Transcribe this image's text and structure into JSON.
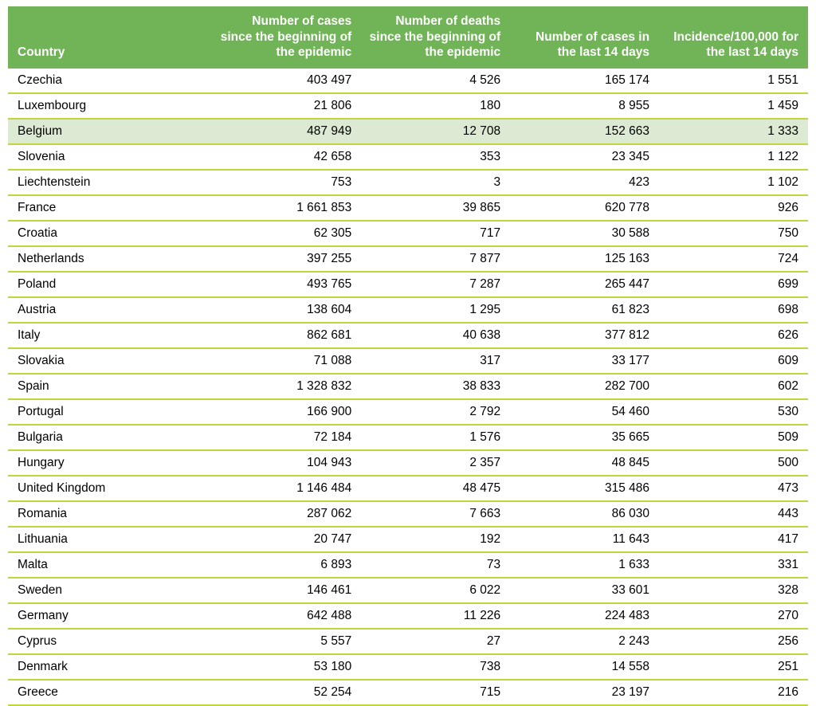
{
  "colors": {
    "header_background": "#71b357",
    "header_text": "#ffffff",
    "row_divider": "#c3d53c",
    "highlight_row_background": "#dcead3",
    "body_text": "#000000",
    "page_background": "#ffffff"
  },
  "chart_data": {
    "type": "table",
    "title": "",
    "legend": null,
    "highlight_country": "Belgium",
    "columns": [
      "Country",
      "Number of cases since the beginning of the epidemic",
      "Number of deaths since the beginning of the epidemic",
      "Number of cases in the last 14 days",
      "Incidence/100,000 for the last 14 days"
    ],
    "row_field_order": [
      "country",
      "cases_total",
      "deaths_total",
      "cases_last_14_days",
      "incidence_per_100000_last_14_days"
    ],
    "rows": [
      {
        "country": "Czechia",
        "cases_total": "403 497",
        "deaths_total": "4 526",
        "cases_last_14_days": "165 174",
        "incidence_per_100000_last_14_days": "1 551"
      },
      {
        "country": "Luxembourg",
        "cases_total": "21 806",
        "deaths_total": "180",
        "cases_last_14_days": "8 955",
        "incidence_per_100000_last_14_days": "1 459"
      },
      {
        "country": "Belgium",
        "cases_total": "487 949",
        "deaths_total": "12 708",
        "cases_last_14_days": "152 663",
        "incidence_per_100000_last_14_days": "1 333"
      },
      {
        "country": "Slovenia",
        "cases_total": "42 658",
        "deaths_total": "353",
        "cases_last_14_days": "23 345",
        "incidence_per_100000_last_14_days": "1 122"
      },
      {
        "country": "Liechtenstein",
        "cases_total": "753",
        "deaths_total": "3",
        "cases_last_14_days": "423",
        "incidence_per_100000_last_14_days": "1 102"
      },
      {
        "country": "France",
        "cases_total": "1 661 853",
        "deaths_total": "39 865",
        "cases_last_14_days": "620 778",
        "incidence_per_100000_last_14_days": "926"
      },
      {
        "country": "Croatia",
        "cases_total": "62 305",
        "deaths_total": "717",
        "cases_last_14_days": "30 588",
        "incidence_per_100000_last_14_days": "750"
      },
      {
        "country": "Netherlands",
        "cases_total": "397 255",
        "deaths_total": "7 877",
        "cases_last_14_days": "125 163",
        "incidence_per_100000_last_14_days": "724"
      },
      {
        "country": "Poland",
        "cases_total": "493 765",
        "deaths_total": "7 287",
        "cases_last_14_days": "265 447",
        "incidence_per_100000_last_14_days": "699"
      },
      {
        "country": "Austria",
        "cases_total": "138 604",
        "deaths_total": "1 295",
        "cases_last_14_days": "61 823",
        "incidence_per_100000_last_14_days": "698"
      },
      {
        "country": "Italy",
        "cases_total": "862 681",
        "deaths_total": "40 638",
        "cases_last_14_days": "377 812",
        "incidence_per_100000_last_14_days": "626"
      },
      {
        "country": "Slovakia",
        "cases_total": "71 088",
        "deaths_total": "317",
        "cases_last_14_days": "33 177",
        "incidence_per_100000_last_14_days": "609"
      },
      {
        "country": "Spain",
        "cases_total": "1 328 832",
        "deaths_total": "38 833",
        "cases_last_14_days": "282 700",
        "incidence_per_100000_last_14_days": "602"
      },
      {
        "country": "Portugal",
        "cases_total": "166 900",
        "deaths_total": "2 792",
        "cases_last_14_days": "54 460",
        "incidence_per_100000_last_14_days": "530"
      },
      {
        "country": "Bulgaria",
        "cases_total": "72 184",
        "deaths_total": "1 576",
        "cases_last_14_days": "35 665",
        "incidence_per_100000_last_14_days": "509"
      },
      {
        "country": "Hungary",
        "cases_total": "104 943",
        "deaths_total": "2 357",
        "cases_last_14_days": "48 845",
        "incidence_per_100000_last_14_days": "500"
      },
      {
        "country": "United Kingdom",
        "cases_total": "1 146 484",
        "deaths_total": "48 475",
        "cases_last_14_days": "315 486",
        "incidence_per_100000_last_14_days": "473"
      },
      {
        "country": "Romania",
        "cases_total": "287 062",
        "deaths_total": "7 663",
        "cases_last_14_days": "86 030",
        "incidence_per_100000_last_14_days": "443"
      },
      {
        "country": "Lithuania",
        "cases_total": "20 747",
        "deaths_total": "192",
        "cases_last_14_days": "11 643",
        "incidence_per_100000_last_14_days": "417"
      },
      {
        "country": "Malta",
        "cases_total": "6 893",
        "deaths_total": "73",
        "cases_last_14_days": "1 633",
        "incidence_per_100000_last_14_days": "331"
      },
      {
        "country": "Sweden",
        "cases_total": "146 461",
        "deaths_total": "6 022",
        "cases_last_14_days": "33 601",
        "incidence_per_100000_last_14_days": "328"
      },
      {
        "country": "Germany",
        "cases_total": "642 488",
        "deaths_total": "11 226",
        "cases_last_14_days": "224 483",
        "incidence_per_100000_last_14_days": "270"
      },
      {
        "country": "Cyprus",
        "cases_total": "5 557",
        "deaths_total": "27",
        "cases_last_14_days": "2 243",
        "incidence_per_100000_last_14_days": "256"
      },
      {
        "country": "Denmark",
        "cases_total": "53 180",
        "deaths_total": "738",
        "cases_last_14_days": "14 558",
        "incidence_per_100000_last_14_days": "251"
      },
      {
        "country": "Greece",
        "cases_total": "52 254",
        "deaths_total": "715",
        "cases_last_14_days": "23 197",
        "incidence_per_100000_last_14_days": "216"
      }
    ]
  }
}
